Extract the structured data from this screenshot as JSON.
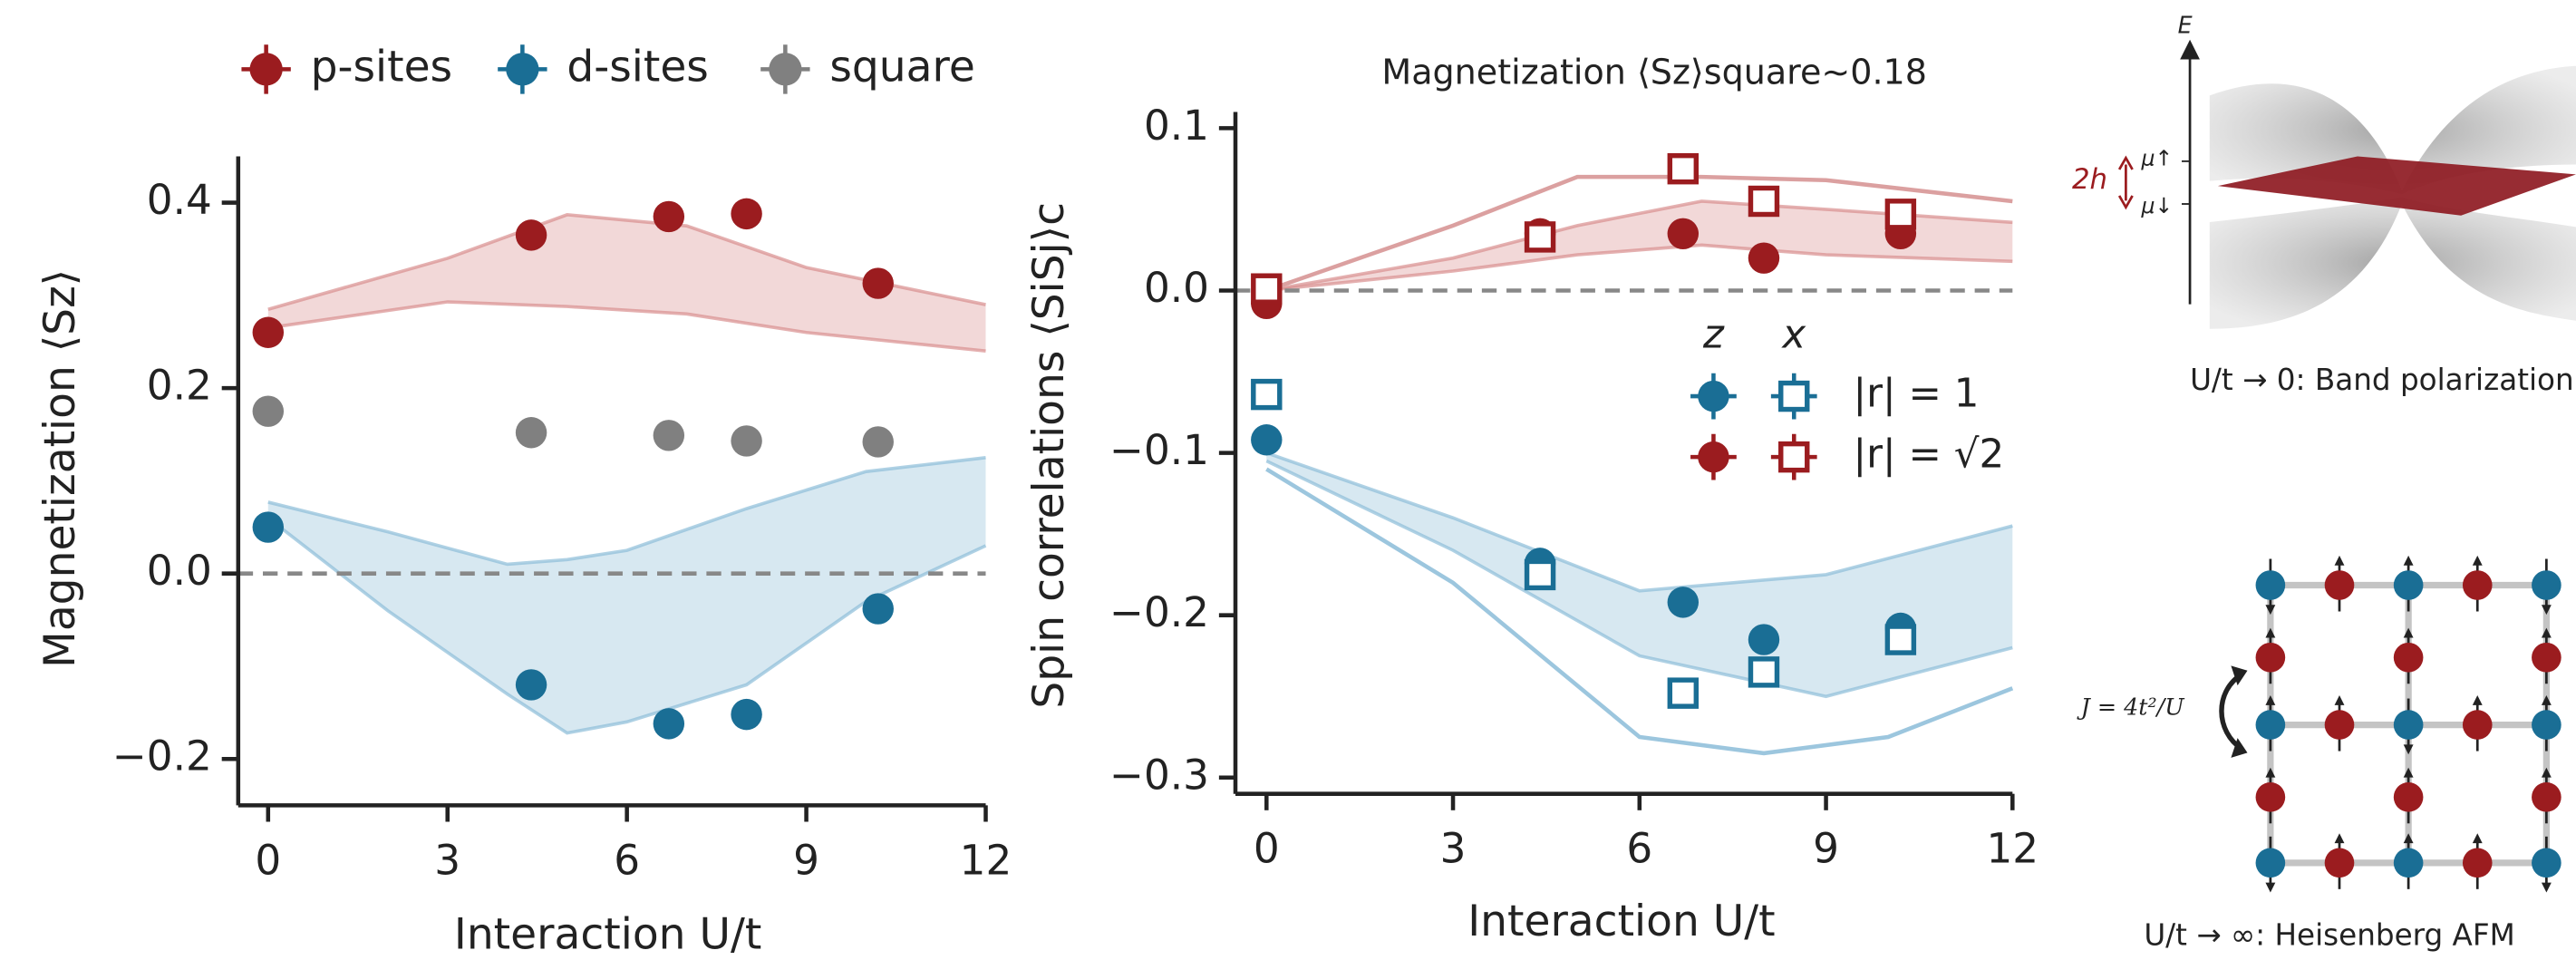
{
  "chart_data": [
    {
      "type": "scatter",
      "y_label": "Magnetization ⟨Sz⟩",
      "x_label": "Interaction U/t",
      "xlim": [
        -0.5,
        12
      ],
      "xticks": [
        0,
        3,
        6,
        9,
        12
      ],
      "ylim": [
        -0.25,
        0.45
      ],
      "yticks": [
        {
          "value": -0.2,
          "label": "−0.2"
        },
        {
          "value": 0,
          "label": "0.0"
        },
        0.2,
        0.4
      ],
      "reference_line": 0,
      "series": [
        {
          "name": "p-sites",
          "color": "#9b1c1f",
          "marker": "circle",
          "x": [
            0,
            4.4,
            6.7,
            8,
            10.2
          ],
          "values": [
            0.26,
            0.365,
            0.385,
            0.388,
            0.313
          ]
        },
        {
          "name": "d-sites",
          "color": "#1a6e95",
          "marker": "circle",
          "x": [
            0,
            4.4,
            6.7,
            8,
            10.2
          ],
          "values": [
            0.05,
            -0.12,
            -0.162,
            -0.152,
            -0.038
          ]
        },
        {
          "name": "square",
          "color": "#808080",
          "marker": "circle",
          "x": [
            0,
            4.4,
            6.7,
            8,
            10.2
          ],
          "values": [
            0.175,
            0.152,
            0.149,
            0.143,
            0.142
          ]
        }
      ],
      "bands": [
        {
          "color": "#d98f8f",
          "x": [
            0,
            3,
            5,
            7,
            9,
            12
          ],
          "upper": [
            0.285,
            0.34,
            0.387,
            0.375,
            0.33,
            0.29
          ],
          "lower": [
            0.265,
            0.293,
            0.288,
            0.28,
            0.26,
            0.24
          ]
        },
        {
          "color": "#8dbdd8",
          "x": [
            0,
            2,
            4,
            5,
            6,
            8,
            10,
            12
          ],
          "upper": [
            0.077,
            0.045,
            0.01,
            0.015,
            0.025,
            0.07,
            0.11,
            0.125
          ],
          "lower": [
            0.06,
            -0.04,
            -0.13,
            -0.172,
            -0.16,
            -0.12,
            -0.03,
            0.03
          ]
        }
      ],
      "lines": []
    },
    {
      "type": "scatter",
      "title": "Magnetization ⟨Sz⟩square∼0.18",
      "y_label": "Spin correlations ⟨SiSj⟩c",
      "x_label": "Interaction U/t",
      "xlim": [
        -0.5,
        12
      ],
      "xticks": [
        0,
        3,
        6,
        9,
        12
      ],
      "ylim": [
        -0.31,
        0.11
      ],
      "yticks": [
        {
          "value": -0.3,
          "label": "−0.3"
        },
        {
          "value": -0.2,
          "label": "−0.2"
        },
        {
          "value": -0.1,
          "label": "−0.1"
        },
        {
          "value": 0,
          "label": "0.0"
        },
        0.1
      ],
      "reference_line": 0,
      "legend": {
        "columns": [
          "z",
          "x"
        ],
        "rows": [
          "|r| = 1",
          "|r| = √2"
        ]
      },
      "series": [
        {
          "color": "#1a6e95",
          "marker": "circle",
          "x": [
            0,
            4.4,
            6.7,
            8,
            10.2
          ],
          "values": [
            -0.092,
            -0.168,
            -0.192,
            -0.215,
            -0.208
          ]
        },
        {
          "color": "#1a6e95",
          "marker": "open-square",
          "x": [
            0,
            4.4,
            6.7,
            8,
            10.2
          ],
          "values": [
            -0.064,
            -0.175,
            -0.248,
            -0.235,
            -0.215
          ]
        },
        {
          "color": "#9b1c1f",
          "marker": "circle",
          "x": [
            0,
            4.4,
            6.7,
            8,
            10.2
          ],
          "values": [
            -0.008,
            0.035,
            0.035,
            0.02,
            0.035
          ]
        },
        {
          "color": "#9b1c1f",
          "marker": "open-square",
          "x": [
            0,
            4.4,
            6.7,
            8,
            10.2
          ],
          "values": [
            0.001,
            0.033,
            0.075,
            0.055,
            0.047
          ]
        }
      ],
      "bands": [
        {
          "color": "#d98f8f",
          "x": [
            0,
            3,
            5,
            7,
            9,
            12
          ],
          "upper": [
            0,
            0.02,
            0.04,
            0.055,
            0.05,
            0.042
          ],
          "lower": [
            0,
            0.012,
            0.022,
            0.028,
            0.022,
            0.018
          ]
        },
        {
          "color": "#8dbdd8",
          "x": [
            0,
            3,
            6,
            9,
            12
          ],
          "upper": [
            -0.1,
            -0.14,
            -0.185,
            -0.175,
            -0.145
          ],
          "lower": [
            -0.105,
            -0.16,
            -0.225,
            -0.25,
            -0.22
          ]
        }
      ],
      "lines": [
        {
          "color": "#dba0a0",
          "x": [
            0,
            3,
            5,
            7,
            9,
            12
          ],
          "values": [
            0,
            0.04,
            0.07,
            0.07,
            0.068,
            0.055
          ]
        },
        {
          "color": "#9cc6de",
          "x": [
            0,
            3,
            6,
            8,
            10,
            12
          ],
          "values": [
            -0.11,
            -0.18,
            -0.275,
            -0.285,
            -0.275,
            -0.245
          ]
        }
      ]
    }
  ],
  "insets": {
    "band": {
      "axis": "E",
      "mu_up": "μ↑",
      "mu_down": "μ↓",
      "splitting": "2h",
      "caption": "U/t → 0: Band polarization"
    },
    "lattice": {
      "coupling": "J = 4t²/U",
      "caption": "U/t → ∞: Heisenberg AFM"
    }
  }
}
